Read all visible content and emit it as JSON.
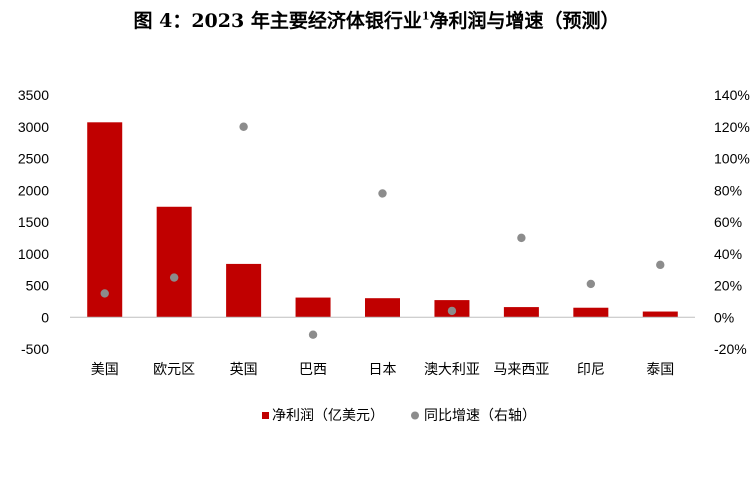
{
  "title": {
    "prefix": "图 4：2023 年主要经济体银行业",
    "superscript": "1",
    "suffix": "净利润与增速（预测）"
  },
  "colors": {
    "bar": "#c00000",
    "dot": "#8c8c8c",
    "axis": "#000000"
  },
  "chart_data": {
    "type": "bar",
    "categories": [
      "美国",
      "欧元区",
      "英国",
      "巴西",
      "日本",
      "澳大利亚",
      "马来西亚",
      "印尼",
      "泰国"
    ],
    "series": [
      {
        "name": "净利润（亿美元）",
        "type": "bar",
        "axis": "left",
        "values": [
          3070,
          1740,
          840,
          310,
          300,
          270,
          160,
          150,
          90
        ]
      },
      {
        "name": "同比增速（右轴）",
        "type": "scatter",
        "axis": "right",
        "values": [
          15,
          25,
          120,
          -11,
          78,
          4,
          50,
          21,
          33
        ]
      }
    ],
    "y_left": {
      "ylim": [
        -500,
        3500
      ],
      "ticks": [
        "-500",
        "0",
        "500",
        "1000",
        "1500",
        "2000",
        "2500",
        "3000",
        "3500"
      ]
    },
    "y_right": {
      "ylim": [
        -20,
        140
      ],
      "unit": "%",
      "ticks": [
        "-20%",
        "0%",
        "20%",
        "40%",
        "60%",
        "80%",
        "100%",
        "120%",
        "140%"
      ]
    },
    "legend_placement": "bottom",
    "grid": false
  }
}
